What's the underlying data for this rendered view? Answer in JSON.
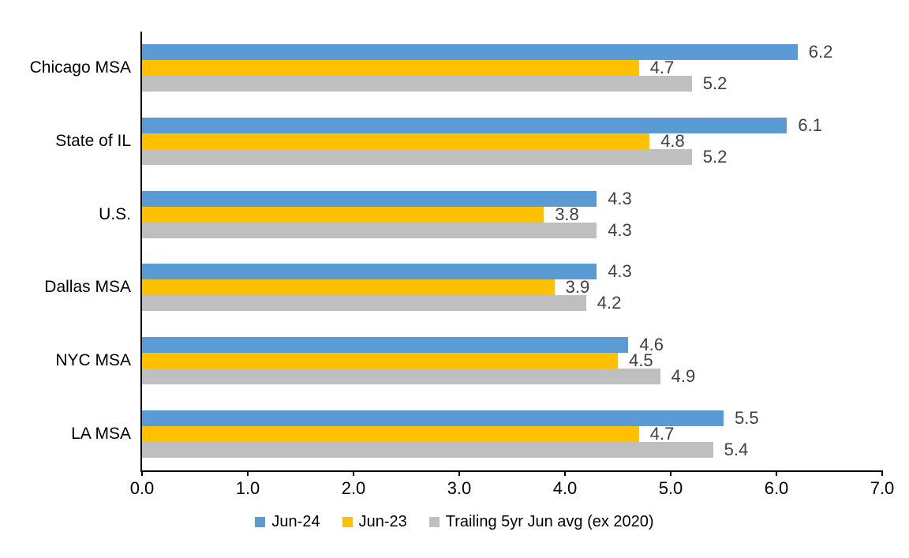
{
  "chart_data": {
    "type": "bar",
    "orientation": "horizontal",
    "title": "",
    "xlabel": "",
    "ylabel": "",
    "categories": [
      "Chicago MSA",
      "State of IL",
      "U.S.",
      "Dallas MSA",
      "NYC MSA",
      "LA MSA"
    ],
    "series": [
      {
        "name": "Jun-24",
        "color": "#5B9BD5",
        "values": [
          6.2,
          6.1,
          4.3,
          4.3,
          4.6,
          5.5
        ]
      },
      {
        "name": "Jun-23",
        "color": "#FFC000",
        "values": [
          4.7,
          4.8,
          3.8,
          3.9,
          4.5,
          4.7
        ]
      },
      {
        "name": "Trailing 5yr Jun avg (ex 2020)",
        "color": "#BFBFBF",
        "values": [
          5.2,
          5.2,
          4.3,
          4.2,
          4.9,
          5.4
        ]
      }
    ],
    "xlim": [
      0,
      7
    ],
    "x_ticks": [
      "0.0",
      "1.0",
      "2.0",
      "3.0",
      "4.0",
      "5.0",
      "6.0",
      "7.0"
    ],
    "data_labels": true,
    "value_label_color": "#404040",
    "axis_color": "#000000",
    "grid": false,
    "legend_position": "bottom"
  }
}
